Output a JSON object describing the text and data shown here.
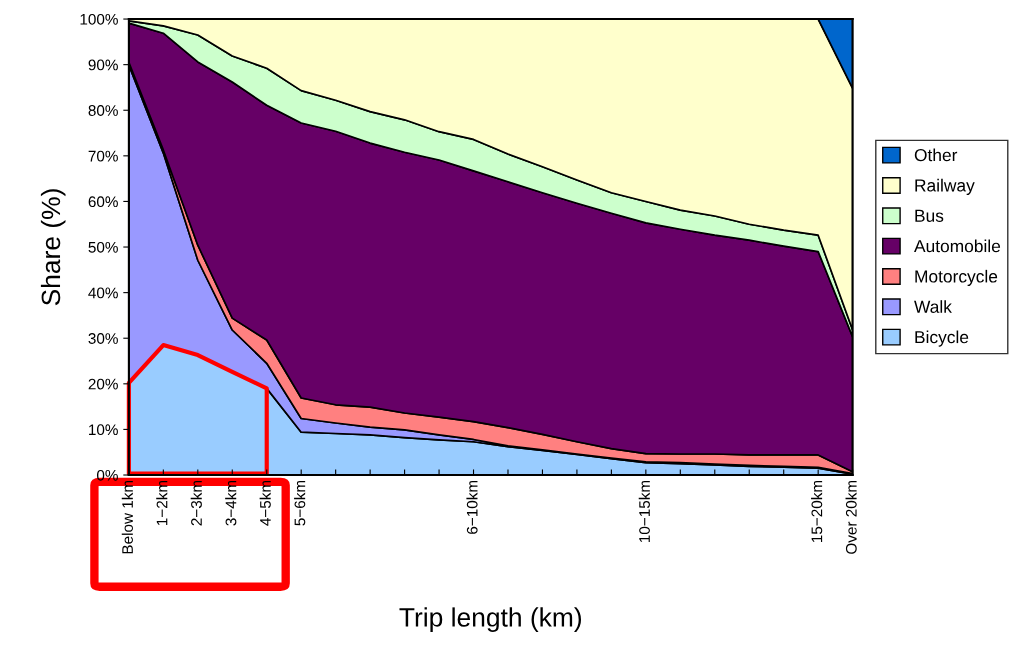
{
  "chart_data": {
    "type": "area",
    "stacked": true,
    "xlabel": "Trip length (km)",
    "ylabel": "Share (%)",
    "categories": [
      "Below 1km",
      "1−2km",
      "2−3km",
      "3−4km",
      "4−5km",
      "5−6km",
      null,
      null,
      null,
      null,
      "6−10km",
      null,
      null,
      null,
      null,
      "10−15km",
      null,
      null,
      null,
      null,
      "15−20km",
      "Over 20km"
    ],
    "ylim": [
      0,
      100
    ],
    "yticks": [
      {
        "value": 0,
        "label": "0%"
      },
      {
        "value": 10,
        "label": "10%"
      },
      {
        "value": 20,
        "label": "20%"
      },
      {
        "value": 30,
        "label": "30%"
      },
      {
        "value": 40,
        "label": "40%"
      },
      {
        "value": 50,
        "label": "50%"
      },
      {
        "value": 60,
        "label": "60%"
      },
      {
        "value": 70,
        "label": "70%"
      },
      {
        "value": 80,
        "label": "80%"
      },
      {
        "value": 90,
        "label": "90%"
      },
      {
        "value": 100,
        "label": "100%"
      }
    ],
    "grid": false,
    "legend": "right",
    "series": [
      {
        "name": "Bicycle",
        "color": "#99ccff",
        "values": [
          20.2,
          28.5,
          26.3,
          22.6,
          19.0,
          9.4,
          9.1,
          8.8,
          8.2,
          7.7,
          7.3,
          6.2,
          5.4,
          4.5,
          3.6,
          2.7,
          2.5,
          2.2,
          1.9,
          1.7,
          1.5,
          0.2
        ]
      },
      {
        "name": "Walk",
        "color": "#9999ff",
        "values": [
          69.7,
          42.1,
          20.8,
          9.2,
          5.5,
          3.0,
          2.3,
          1.7,
          1.7,
          1.1,
          0.5,
          0.2,
          0.1,
          0.1,
          0.1,
          0.2,
          0.2,
          0.2,
          0.2,
          0.2,
          0.2,
          0.1
        ]
      },
      {
        "name": "Motorcycle",
        "color": "#ff8080",
        "values": [
          0.6,
          0.7,
          3.3,
          2.6,
          5.1,
          4.5,
          4.0,
          4.4,
          3.7,
          3.9,
          3.9,
          4.0,
          3.4,
          2.7,
          2.1,
          1.8,
          1.9,
          2.2,
          2.3,
          2.5,
          2.7,
          0.4
        ]
      },
      {
        "name": "Automobile",
        "color": "#660066",
        "values": [
          8.6,
          25.6,
          40.2,
          51.8,
          51.5,
          60.3,
          60.0,
          57.9,
          57.2,
          56.4,
          55.0,
          53.9,
          53.0,
          52.3,
          51.6,
          50.6,
          49.3,
          48.0,
          47.1,
          45.8,
          44.6,
          29.6
        ]
      },
      {
        "name": "Bus",
        "color": "#ccffcc",
        "values": [
          0.5,
          1.6,
          5.9,
          5.7,
          8.1,
          7.1,
          6.8,
          6.9,
          7.1,
          6.2,
          6.9,
          6.1,
          5.7,
          5.1,
          4.5,
          4.7,
          4.2,
          4.2,
          3.5,
          3.5,
          3.6,
          1.5
        ]
      },
      {
        "name": "Railway",
        "color": "#ffffcc",
        "values": [
          0.4,
          1.5,
          3.5,
          8.1,
          10.8,
          15.7,
          17.8,
          20.3,
          22.1,
          24.7,
          26.4,
          29.6,
          32.4,
          35.3,
          38.1,
          40.0,
          41.9,
          43.2,
          45.0,
          46.3,
          47.4,
          53.0
        ]
      },
      {
        "name": "Other",
        "color": "#0066cc",
        "values": [
          0,
          0,
          0,
          0,
          0,
          0,
          0,
          0,
          0,
          0,
          0,
          0,
          0,
          0,
          0,
          0,
          0,
          0,
          0,
          0,
          0,
          15.2
        ]
      }
    ]
  }
}
